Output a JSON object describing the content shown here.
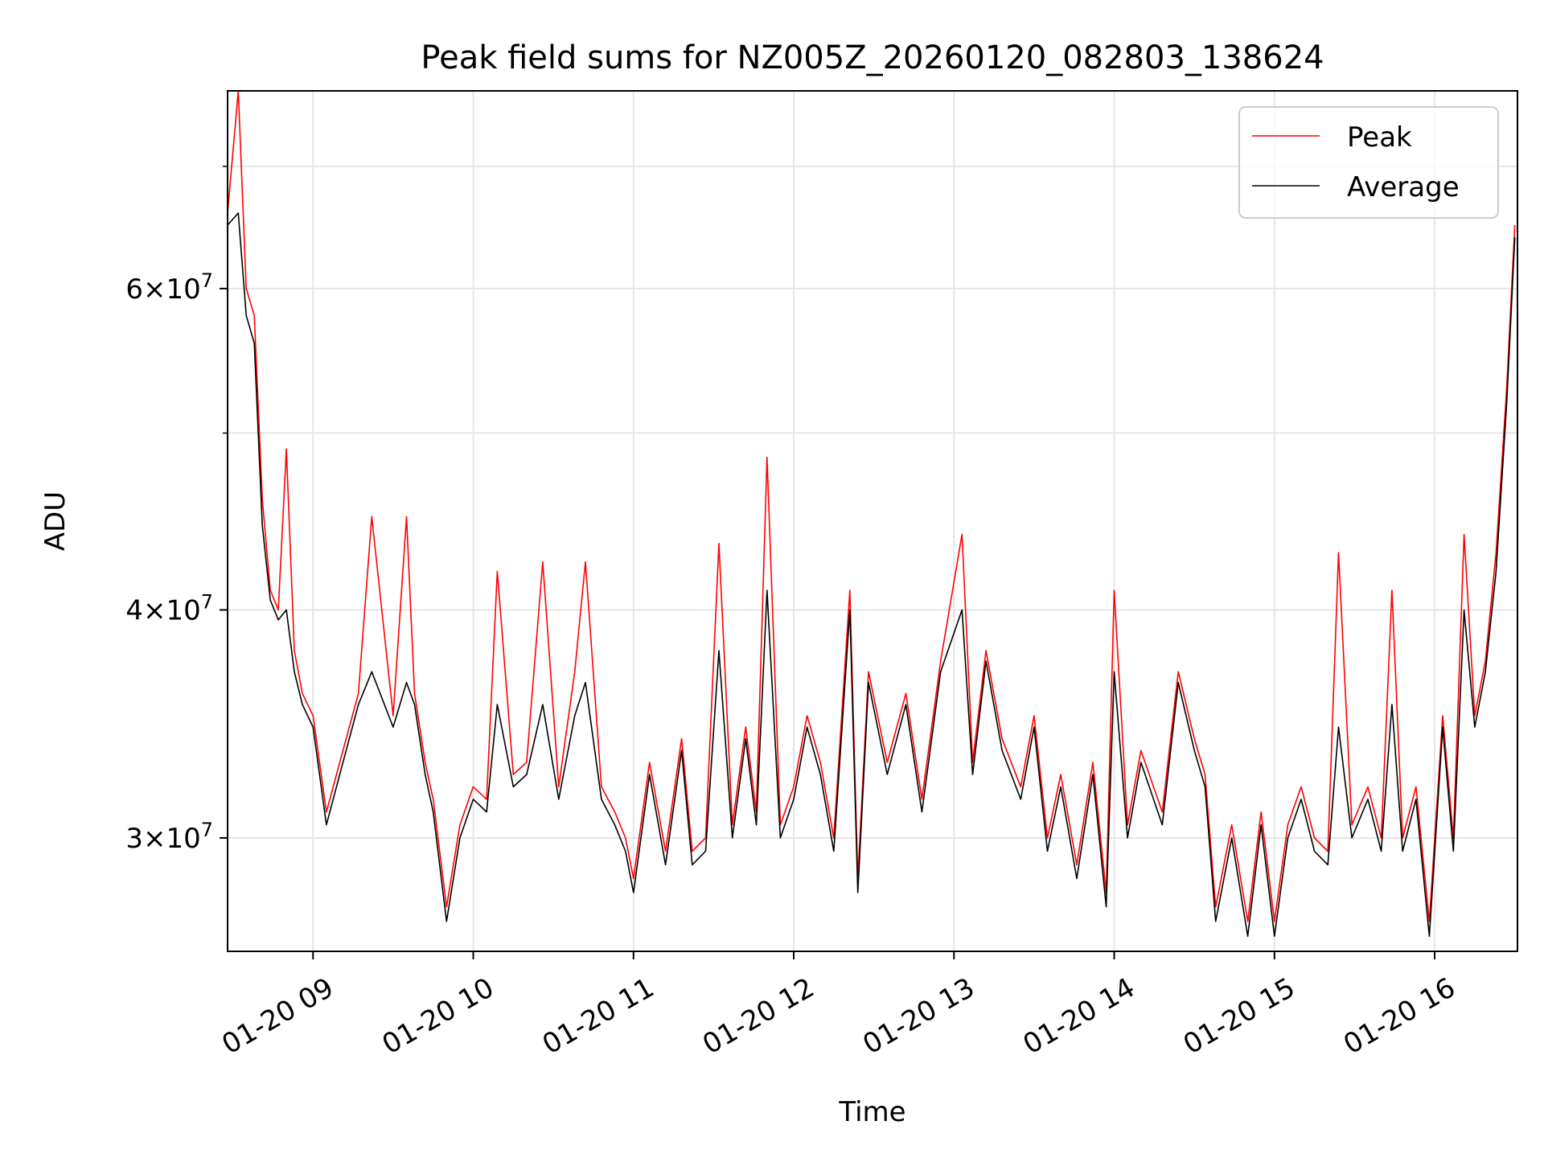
{
  "chart_data": {
    "type": "line",
    "title": "Peak field sums for NZ005Z_20260120_082803_138624",
    "xlabel": "Time",
    "ylabel": "ADU",
    "y_scale": "log",
    "ylim": [
      26000000,
      77000000
    ],
    "xlim": [
      "2026-01-20 08:28",
      "2026-01-20 16:31"
    ],
    "grid": true,
    "legend_position": "top-right",
    "x_ticks": [
      {
        "value": "2026-01-20 09:00",
        "label": "01-20 09"
      },
      {
        "value": "2026-01-20 10:00",
        "label": "01-20 10"
      },
      {
        "value": "2026-01-20 11:00",
        "label": "01-20 11"
      },
      {
        "value": "2026-01-20 12:00",
        "label": "01-20 12"
      },
      {
        "value": "2026-01-20 13:00",
        "label": "01-20 13"
      },
      {
        "value": "2026-01-20 14:00",
        "label": "01-20 14"
      },
      {
        "value": "2026-01-20 15:00",
        "label": "01-20 15"
      },
      {
        "value": "2026-01-20 16:00",
        "label": "01-20 16"
      }
    ],
    "y_ticks": [
      {
        "value": 30000000,
        "mantissa": "3",
        "exponent": "7"
      },
      {
        "value": 40000000,
        "mantissa": "4",
        "exponent": "7"
      },
      {
        "value": 60000000,
        "mantissa": "6",
        "exponent": "7"
      }
    ],
    "y_minor_ticks": [
      50000000,
      70000000
    ],
    "series": [
      {
        "name": "Peak",
        "color": "#ff0000",
        "x": [
          "2026-01-20 08:28",
          "2026-01-20 08:32",
          "2026-01-20 08:35",
          "2026-01-20 08:38",
          "2026-01-20 08:41",
          "2026-01-20 08:44",
          "2026-01-20 08:47",
          "2026-01-20 08:50",
          "2026-01-20 08:53",
          "2026-01-20 08:56",
          "2026-01-20 09:00",
          "2026-01-20 09:05",
          "2026-01-20 09:10",
          "2026-01-20 09:17",
          "2026-01-20 09:22",
          "2026-01-20 09:30",
          "2026-01-20 09:35",
          "2026-01-20 09:38",
          "2026-01-20 09:42",
          "2026-01-20 09:45",
          "2026-01-20 09:50",
          "2026-01-20 09:55",
          "2026-01-20 10:00",
          "2026-01-20 10:05",
          "2026-01-20 10:09",
          "2026-01-20 10:15",
          "2026-01-20 10:20",
          "2026-01-20 10:26",
          "2026-01-20 10:32",
          "2026-01-20 10:38",
          "2026-01-20 10:42",
          "2026-01-20 10:48",
          "2026-01-20 10:53",
          "2026-01-20 10:57",
          "2026-01-20 11:00",
          "2026-01-20 11:06",
          "2026-01-20 11:12",
          "2026-01-20 11:18",
          "2026-01-20 11:22",
          "2026-01-20 11:27",
          "2026-01-20 11:32",
          "2026-01-20 11:37",
          "2026-01-20 11:42",
          "2026-01-20 11:46",
          "2026-01-20 11:50",
          "2026-01-20 11:55",
          "2026-01-20 12:00",
          "2026-01-20 12:05",
          "2026-01-20 12:10",
          "2026-01-20 12:15",
          "2026-01-20 12:21",
          "2026-01-20 12:24",
          "2026-01-20 12:28",
          "2026-01-20 12:35",
          "2026-01-20 12:42",
          "2026-01-20 12:48",
          "2026-01-20 12:55",
          "2026-01-20 13:03",
          "2026-01-20 13:07",
          "2026-01-20 13:12",
          "2026-01-20 13:18",
          "2026-01-20 13:25",
          "2026-01-20 13:30",
          "2026-01-20 13:35",
          "2026-01-20 13:40",
          "2026-01-20 13:46",
          "2026-01-20 13:52",
          "2026-01-20 13:57",
          "2026-01-20 14:00",
          "2026-01-20 14:05",
          "2026-01-20 14:10",
          "2026-01-20 14:18",
          "2026-01-20 14:24",
          "2026-01-20 14:30",
          "2026-01-20 14:34",
          "2026-01-20 14:38",
          "2026-01-20 14:44",
          "2026-01-20 14:50",
          "2026-01-20 14:55",
          "2026-01-20 15:00",
          "2026-01-20 15:05",
          "2026-01-20 15:10",
          "2026-01-20 15:15",
          "2026-01-20 15:20",
          "2026-01-20 15:24",
          "2026-01-20 15:29",
          "2026-01-20 15:35",
          "2026-01-20 15:40",
          "2026-01-20 15:44",
          "2026-01-20 15:48",
          "2026-01-20 15:53",
          "2026-01-20 15:58",
          "2026-01-20 16:03",
          "2026-01-20 16:07",
          "2026-01-20 16:11",
          "2026-01-20 16:15",
          "2026-01-20 16:19",
          "2026-01-20 16:23",
          "2026-01-20 16:27",
          "2026-01-20 16:30"
        ],
        "values": [
          66000000,
          77000000,
          60000000,
          58000000,
          46000000,
          41000000,
          40000000,
          49000000,
          38000000,
          36000000,
          35000000,
          31000000,
          33000000,
          36000000,
          45000000,
          35000000,
          45000000,
          36000000,
          33000000,
          31500000,
          27500000,
          30500000,
          32000000,
          31500000,
          42000000,
          32500000,
          33000000,
          42500000,
          32000000,
          37000000,
          42500000,
          32000000,
          31000000,
          30000000,
          28500000,
          33000000,
          29500000,
          34000000,
          29500000,
          30000000,
          43500000,
          30500000,
          34500000,
          31000000,
          48500000,
          30500000,
          32000000,
          35000000,
          33000000,
          30000000,
          41000000,
          28500000,
          37000000,
          33000000,
          36000000,
          31500000,
          37500000,
          44000000,
          33000000,
          38000000,
          34000000,
          32000000,
          35000000,
          30000000,
          32500000,
          29000000,
          33000000,
          28000000,
          41000000,
          30500000,
          33500000,
          31000000,
          37000000,
          34000000,
          32500000,
          27500000,
          30500000,
          27000000,
          31000000,
          27000000,
          30500000,
          32000000,
          30000000,
          29500000,
          43000000,
          30500000,
          32000000,
          30000000,
          41000000,
          30000000,
          32000000,
          27000000,
          35000000,
          30000000,
          44000000,
          35000000,
          37500000,
          43000000,
          53000000,
          65000000
        ]
      },
      {
        "name": "Average",
        "color": "#000000",
        "x": [
          "2026-01-20 08:28",
          "2026-01-20 08:32",
          "2026-01-20 08:35",
          "2026-01-20 08:38",
          "2026-01-20 08:41",
          "2026-01-20 08:44",
          "2026-01-20 08:47",
          "2026-01-20 08:50",
          "2026-01-20 08:53",
          "2026-01-20 08:56",
          "2026-01-20 09:00",
          "2026-01-20 09:05",
          "2026-01-20 09:10",
          "2026-01-20 09:17",
          "2026-01-20 09:22",
          "2026-01-20 09:30",
          "2026-01-20 09:35",
          "2026-01-20 09:38",
          "2026-01-20 09:42",
          "2026-01-20 09:45",
          "2026-01-20 09:50",
          "2026-01-20 09:55",
          "2026-01-20 10:00",
          "2026-01-20 10:05",
          "2026-01-20 10:09",
          "2026-01-20 10:15",
          "2026-01-20 10:20",
          "2026-01-20 10:26",
          "2026-01-20 10:32",
          "2026-01-20 10:38",
          "2026-01-20 10:42",
          "2026-01-20 10:48",
          "2026-01-20 10:53",
          "2026-01-20 10:57",
          "2026-01-20 11:00",
          "2026-01-20 11:06",
          "2026-01-20 11:12",
          "2026-01-20 11:18",
          "2026-01-20 11:22",
          "2026-01-20 11:27",
          "2026-01-20 11:32",
          "2026-01-20 11:37",
          "2026-01-20 11:42",
          "2026-01-20 11:46",
          "2026-01-20 11:50",
          "2026-01-20 11:55",
          "2026-01-20 12:00",
          "2026-01-20 12:05",
          "2026-01-20 12:10",
          "2026-01-20 12:15",
          "2026-01-20 12:21",
          "2026-01-20 12:24",
          "2026-01-20 12:28",
          "2026-01-20 12:35",
          "2026-01-20 12:42",
          "2026-01-20 12:48",
          "2026-01-20 12:55",
          "2026-01-20 13:03",
          "2026-01-20 13:07",
          "2026-01-20 13:12",
          "2026-01-20 13:18",
          "2026-01-20 13:25",
          "2026-01-20 13:30",
          "2026-01-20 13:35",
          "2026-01-20 13:40",
          "2026-01-20 13:46",
          "2026-01-20 13:52",
          "2026-01-20 13:57",
          "2026-01-20 14:00",
          "2026-01-20 14:05",
          "2026-01-20 14:10",
          "2026-01-20 14:18",
          "2026-01-20 14:24",
          "2026-01-20 14:30",
          "2026-01-20 14:34",
          "2026-01-20 14:38",
          "2026-01-20 14:44",
          "2026-01-20 14:50",
          "2026-01-20 14:55",
          "2026-01-20 15:00",
          "2026-01-20 15:05",
          "2026-01-20 15:10",
          "2026-01-20 15:15",
          "2026-01-20 15:20",
          "2026-01-20 15:24",
          "2026-01-20 15:29",
          "2026-01-20 15:35",
          "2026-01-20 15:40",
          "2026-01-20 15:44",
          "2026-01-20 15:48",
          "2026-01-20 15:53",
          "2026-01-20 15:58",
          "2026-01-20 16:03",
          "2026-01-20 16:07",
          "2026-01-20 16:11",
          "2026-01-20 16:15",
          "2026-01-20 16:19",
          "2026-01-20 16:23",
          "2026-01-20 16:27",
          "2026-01-20 16:30"
        ],
        "values": [
          65000000,
          66000000,
          58000000,
          56000000,
          44500000,
          40500000,
          39500000,
          40000000,
          37000000,
          35500000,
          34500000,
          30500000,
          32500000,
          35500000,
          37000000,
          34500000,
          36500000,
          35500000,
          32500000,
          31000000,
          27000000,
          30000000,
          31500000,
          31000000,
          35500000,
          32000000,
          32500000,
          35500000,
          31500000,
          35000000,
          36500000,
          31500000,
          30500000,
          29500000,
          28000000,
          32500000,
          29000000,
          33500000,
          29000000,
          29500000,
          38000000,
          30000000,
          34000000,
          30500000,
          41000000,
          30000000,
          31500000,
          34500000,
          32500000,
          29500000,
          40000000,
          28000000,
          36500000,
          32500000,
          35500000,
          31000000,
          37000000,
          40000000,
          32500000,
          37500000,
          33500000,
          31500000,
          34500000,
          29500000,
          32000000,
          28500000,
          32500000,
          27500000,
          37000000,
          30000000,
          33000000,
          30500000,
          36500000,
          33500000,
          32000000,
          27000000,
          30000000,
          26500000,
          30500000,
          26500000,
          30000000,
          31500000,
          29500000,
          29000000,
          34500000,
          30000000,
          31500000,
          29500000,
          35500000,
          29500000,
          31500000,
          26500000,
          34500000,
          29500000,
          40000000,
          34500000,
          37000000,
          42000000,
          52000000,
          64000000
        ]
      }
    ]
  }
}
